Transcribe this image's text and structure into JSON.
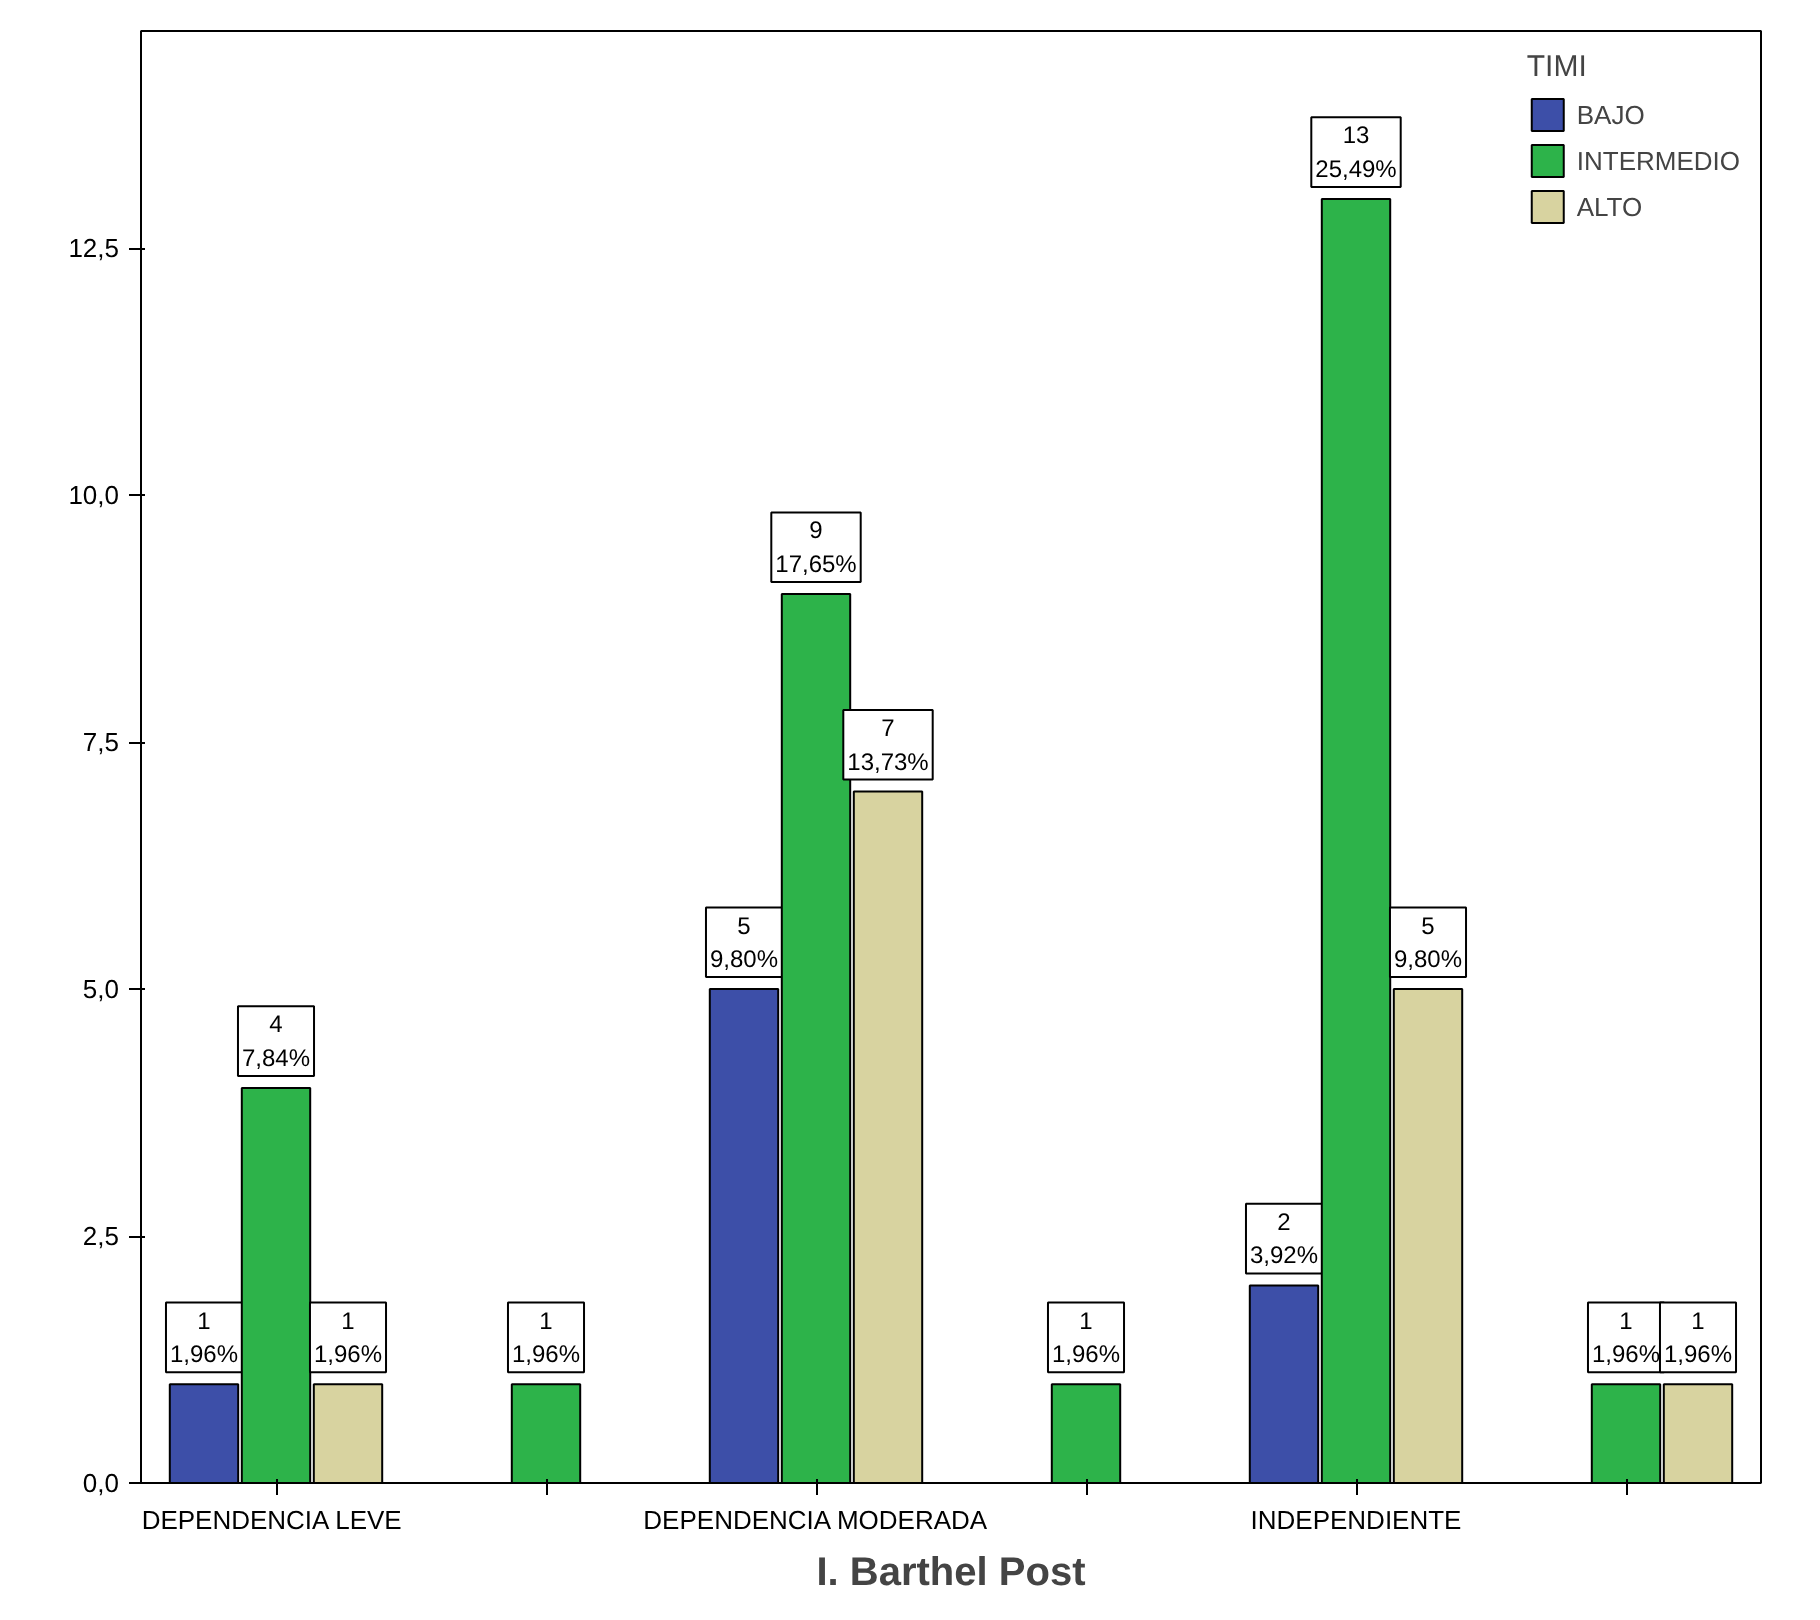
{
  "chart_data": {
    "type": "bar",
    "xlabel": "I. Barthel Post",
    "legend_title": "TIMI",
    "legend": "top right",
    "grid": false,
    "categories": [
      "DEPENDENCIA  LEVE",
      null,
      "DEPENDENCIA MODERADA",
      null,
      "INDEPENDIENTE",
      null
    ],
    "ylim": [
      0,
      14.7
    ],
    "yticks": [
      {
        "value": 0,
        "label": "0,0"
      },
      {
        "value": 2.5,
        "label": "2,5"
      },
      {
        "value": 5,
        "label": "5,0"
      },
      {
        "value": 7.5,
        "label": "7,5"
      },
      {
        "value": 10,
        "label": "10,0"
      },
      {
        "value": 12.5,
        "label": "12,5"
      }
    ],
    "series": [
      {
        "name": "BAJO",
        "color": "#3d4fa8",
        "values": [
          1,
          null,
          5,
          null,
          2,
          null
        ],
        "value_labels": [
          "1\n1,96%",
          null,
          "5\n9,80%",
          null,
          "2\n3,92%",
          null
        ]
      },
      {
        "name": "INTERMEDIO",
        "color": "#2db34a",
        "values": [
          4,
          1,
          9,
          1,
          13,
          1
        ],
        "value_labels": [
          "4\n7,84%",
          "1\n1,96%",
          "9\n17,65%",
          "1\n1,96%",
          "13\n25,49%",
          "1\n1,96%"
        ]
      },
      {
        "name": "ALTO",
        "color": "#d8d3a0",
        "values": [
          1,
          null,
          7,
          null,
          5,
          1
        ],
        "value_labels": [
          "1\n1,96%",
          null,
          "7\n13,73%",
          null,
          "5\n9,80%",
          "1\n1,96%"
        ]
      }
    ]
  }
}
